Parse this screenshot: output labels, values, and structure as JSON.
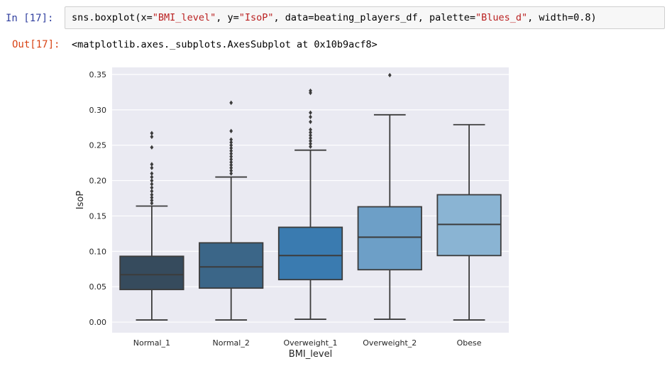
{
  "cell": {
    "in_prompt": "In  [17]:",
    "out_prompt": "Out[17]:",
    "code": [
      {
        "t": "sns.boxplot(x=",
        "c": ""
      },
      {
        "t": "\"BMI_level\"",
        "c": "str"
      },
      {
        "t": ", y=",
        "c": ""
      },
      {
        "t": "\"IsoP\"",
        "c": "str"
      },
      {
        "t": ", data=beating_players_df, palette=",
        "c": ""
      },
      {
        "t": "\"Blues_d\"",
        "c": "str"
      },
      {
        "t": ", width=0.8)",
        "c": ""
      }
    ],
    "output_text": "<matplotlib.axes._subplots.AxesSubplot at 0x10b9acf8>"
  },
  "chart_data": {
    "type": "box",
    "xlabel": "BMI_level",
    "ylabel": "IsoP",
    "ylim": [
      -0.015,
      0.36
    ],
    "yticks": [
      "0.00",
      "0.05",
      "0.10",
      "0.15",
      "0.20",
      "0.25",
      "0.30",
      "0.35"
    ],
    "grid": true,
    "categories": [
      "Normal_1",
      "Normal_2",
      "Overweight_1",
      "Overweight_2",
      "Obese"
    ],
    "colors": [
      "#364b5d",
      "#3b6688",
      "#3a7bb0",
      "#6d9fc7",
      "#8ab4d3"
    ],
    "boxes": [
      {
        "whislo": 0.003,
        "q1": 0.046,
        "med": 0.067,
        "q3": 0.093,
        "whishi": 0.164,
        "fliers": [
          0.168,
          0.172,
          0.176,
          0.18,
          0.185,
          0.19,
          0.195,
          0.2,
          0.205,
          0.21,
          0.218,
          0.223,
          0.247,
          0.262,
          0.267
        ]
      },
      {
        "whislo": 0.003,
        "q1": 0.048,
        "med": 0.078,
        "q3": 0.112,
        "whishi": 0.205,
        "fliers": [
          0.21,
          0.214,
          0.218,
          0.222,
          0.226,
          0.23,
          0.234,
          0.238,
          0.242,
          0.246,
          0.25,
          0.254,
          0.258,
          0.27,
          0.31
        ]
      },
      {
        "whislo": 0.004,
        "q1": 0.06,
        "med": 0.094,
        "q3": 0.134,
        "whishi": 0.243,
        "fliers": [
          0.248,
          0.252,
          0.256,
          0.26,
          0.264,
          0.268,
          0.272,
          0.283,
          0.29,
          0.296,
          0.324,
          0.327
        ]
      },
      {
        "whislo": 0.004,
        "q1": 0.074,
        "med": 0.12,
        "q3": 0.163,
        "whishi": 0.293,
        "fliers": [
          0.349
        ]
      },
      {
        "whislo": 0.003,
        "q1": 0.094,
        "med": 0.138,
        "q3": 0.18,
        "whishi": 0.279,
        "fliers": []
      }
    ]
  }
}
